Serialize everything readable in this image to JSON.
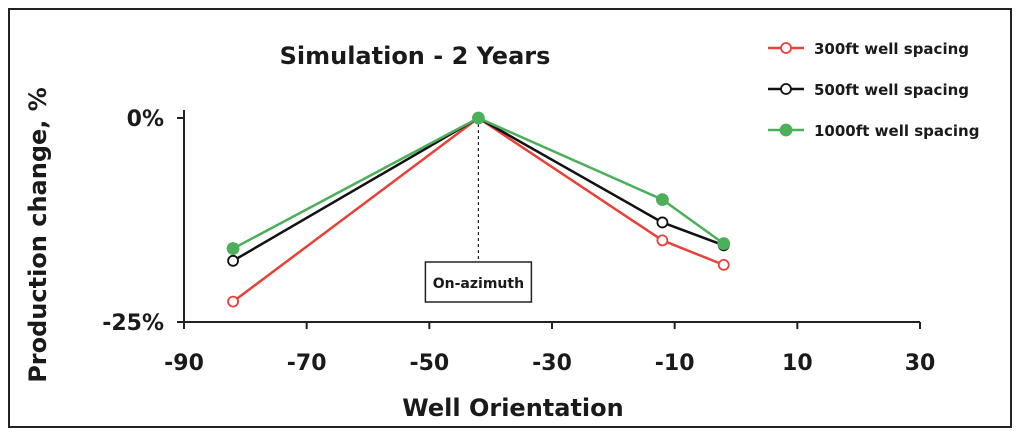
{
  "chart_data": {
    "type": "line",
    "title": "Simulation - 2 Years",
    "xlabel": "Well Orientation",
    "ylabel": "Production change, %",
    "xlim": [
      -90,
      30
    ],
    "ylim": [
      -25,
      0
    ],
    "x_ticks": [
      "-90",
      "-70",
      "-50",
      "-30",
      "-10",
      "10",
      "30"
    ],
    "x_tick_values": [
      -90,
      -70,
      -50,
      -30,
      -10,
      10,
      30
    ],
    "y_ticks": [
      "0%",
      "-25%"
    ],
    "y_tick_values": [
      0,
      -25
    ],
    "legend_position": "top-right",
    "grid": false,
    "series": [
      {
        "name": "300ft well spacing",
        "color": "#e8413a",
        "marker": "open-circle",
        "x": [
          -82,
          -42,
          -12,
          -2
        ],
        "y": [
          -22.5,
          0,
          -15,
          -18
        ]
      },
      {
        "name": "500ft well spacing",
        "color": "#111111",
        "marker": "open-circle",
        "x": [
          -82,
          -42,
          -12,
          -2
        ],
        "y": [
          -17.5,
          0,
          -12.8,
          -15.6
        ]
      },
      {
        "name": "1000ft well spacing",
        "color": "#4caf5a",
        "marker": "filled-circle",
        "x": [
          -82,
          -42,
          -12,
          -2
        ],
        "y": [
          -16,
          0,
          -10,
          -15.4
        ]
      }
    ],
    "annotation": {
      "text": "On-azimuth",
      "x": -42
    }
  }
}
